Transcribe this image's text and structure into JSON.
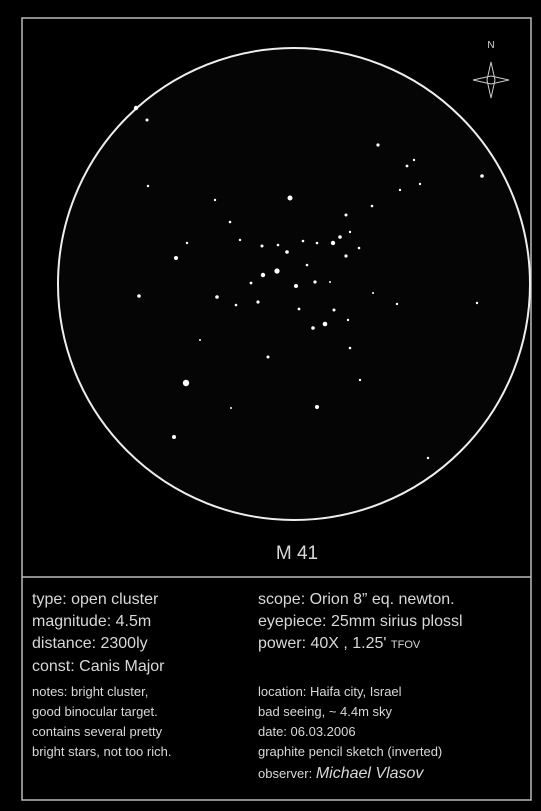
{
  "sketch": {
    "compass": "N",
    "title": "M 41",
    "left": [
      "type: open cluster",
      "magnitude: 4.5m",
      "distance: 2300ly",
      "const: Canis Major"
    ],
    "notes": [
      "notes: bright cluster,",
      "good binocular target.",
      "contains several pretty",
      "bright stars, not too rich."
    ],
    "right": [
      "scope: Orion 8” eq. newton.",
      "eyepiece: 25mm sirius plossl"
    ],
    "power": {
      "text": "power: 40X , 1.25'",
      "unit": "TFOV"
    },
    "details": [
      "location: Haifa city, Israel",
      "bad seeing, ~ 4.4m sky",
      "date: 06.03.2006",
      "graphite pencil sketch (inverted)"
    ],
    "observer": {
      "label": "observer:",
      "name": "Michael Vlasov"
    }
  }
}
